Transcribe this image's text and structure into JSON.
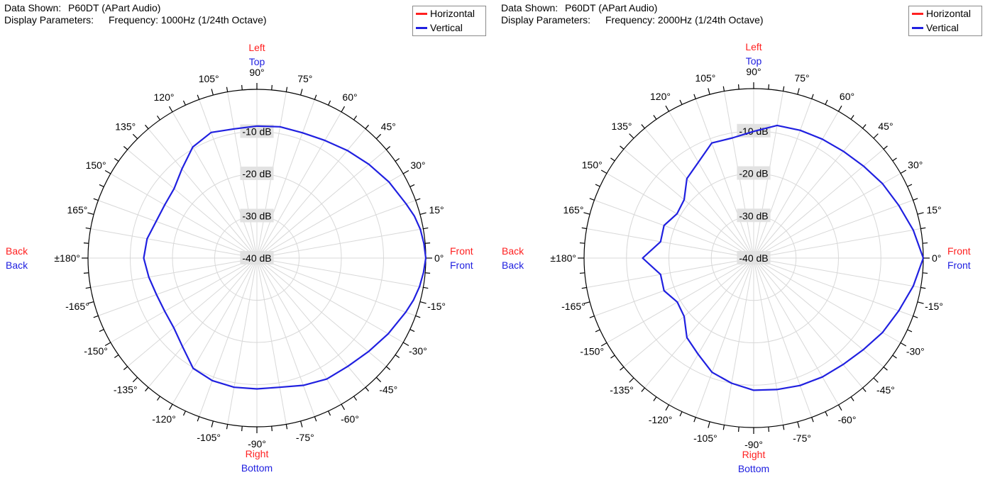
{
  "colors": {
    "horizontal": "#ff2020",
    "vertical": "#2020e0",
    "grid": "#d8d8d8",
    "frame": "#000000",
    "db_label_bg": "#e2e2e2"
  },
  "chart_data": [
    {
      "type": "polar-line",
      "data_shown_label": "Data Shown:",
      "data_shown_value": "P60DT (APart Audio)",
      "display_params_label": "Display Parameters:",
      "display_params_value": "Frequency: 1000Hz (1/24th Octave)",
      "legend": [
        "Horizontal",
        "Vertical"
      ],
      "rlim": [
        -40,
        0
      ],
      "db_rings": [
        "-10 dB",
        "-20 dB",
        "-30 dB",
        "-40 dB"
      ],
      "angle_labels": [
        "0°",
        "15°",
        "30°",
        "45°",
        "60°",
        "75°",
        "90°",
        "105°",
        "120°",
        "135°",
        "150°",
        "165°",
        "±180°",
        "-165°",
        "-150°",
        "-135°",
        "-120°",
        "-105°",
        "-90°",
        "-75°",
        "-60°",
        "-45°",
        "-30°",
        "-15°"
      ],
      "axis_labels": {
        "top": [
          "Left",
          "Top"
        ],
        "bottom": [
          "Right",
          "Bottom"
        ],
        "right": [
          "Front",
          "Front"
        ],
        "left": [
          "Back",
          "Back"
        ]
      },
      "series": [
        {
          "name": "Vertical",
          "angles": [
            0,
            5,
            10,
            15,
            20,
            30,
            40,
            50,
            60,
            70,
            80,
            90,
            100,
            110,
            120,
            130,
            140,
            150,
            160,
            170,
            180,
            -170,
            -160,
            -150,
            -140,
            -130,
            -120,
            -110,
            -100,
            -90,
            -80,
            -70,
            -60,
            -50,
            -40,
            -30,
            -20,
            -15,
            -10,
            -5
          ],
          "values": [
            0,
            -0.3,
            -0.7,
            -1.4,
            -2.4,
            -3.9,
            -5.4,
            -6.7,
            -7.8,
            -8.4,
            -8.4,
            -8.7,
            -8.9,
            -8.3,
            -9.6,
            -12.4,
            -14.4,
            -14.8,
            -14.6,
            -13.6,
            -13.2,
            -14.0,
            -14.7,
            -14.8,
            -14.3,
            -12.6,
            -9.8,
            -9.1,
            -8.9,
            -9.0,
            -8.9,
            -7.9,
            -6.9,
            -6.5,
            -5.5,
            -4.1,
            -2.5,
            -1.6,
            -0.9,
            -0.4
          ]
        }
      ]
    },
    {
      "type": "polar-line",
      "data_shown_label": "Data Shown:",
      "data_shown_value": "P60DT (APart Audio)",
      "display_params_label": "Display Parameters:",
      "display_params_value": "Frequency: 2000Hz (1/24th Octave)",
      "legend": [
        "Horizontal",
        "Vertical"
      ],
      "rlim": [
        -40,
        0
      ],
      "db_rings": [
        "-10 dB",
        "-20 dB",
        "-30 dB",
        "-40 dB"
      ],
      "angle_labels": [
        "0°",
        "15°",
        "30°",
        "45°",
        "60°",
        "75°",
        "90°",
        "105°",
        "120°",
        "135°",
        "150°",
        "165°",
        "±180°",
        "-165°",
        "-150°",
        "-135°",
        "-120°",
        "-105°",
        "-90°",
        "-75°",
        "-60°",
        "-45°",
        "-30°",
        "-15°"
      ],
      "axis_labels": {
        "top": [
          "Left",
          "Top"
        ],
        "bottom": [
          "Right",
          "Bottom"
        ],
        "right": [
          "Front",
          "Front"
        ],
        "left": [
          "Back",
          "Back"
        ]
      },
      "series": [
        {
          "name": "Vertical",
          "angles": [
            0,
            10,
            20,
            30,
            40,
            50,
            60,
            70,
            80,
            90,
            100,
            110,
            120,
            130,
            140,
            150,
            160,
            170,
            180,
            -170,
            -160,
            -150,
            -140,
            -130,
            -120,
            -110,
            -100,
            -90,
            -80,
            -70,
            -60,
            -50,
            -40,
            -30,
            -20,
            -10
          ],
          "values": [
            0,
            -1.8,
            -3.6,
            -4.9,
            -6.2,
            -7.1,
            -7.6,
            -7.9,
            -8.2,
            -10.1,
            -11.2,
            -11.1,
            -13.9,
            -15.5,
            -18.6,
            -19.1,
            -17.5,
            -17.7,
            -13.8,
            -17.7,
            -17.5,
            -19.2,
            -18.6,
            -15.5,
            -13.8,
            -11.3,
            -10.0,
            -8.8,
            -8.5,
            -8.0,
            -7.6,
            -7.2,
            -6.3,
            -4.9,
            -3.6,
            -1.8
          ]
        }
      ]
    }
  ]
}
